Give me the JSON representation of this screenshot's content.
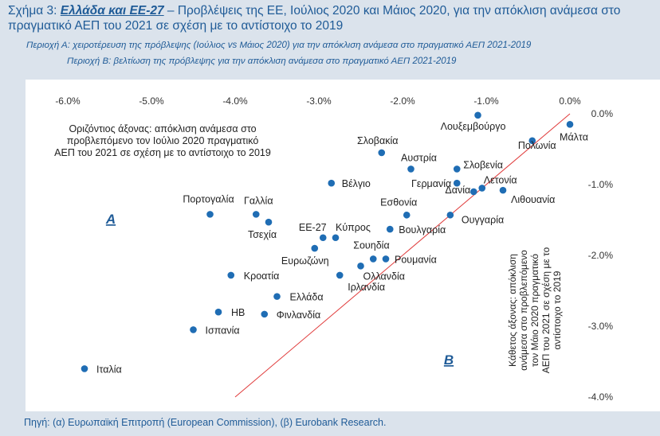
{
  "title": {
    "prefix": "Σχήμα 3: ",
    "highlight": "Ελλάδα και ΕΕ-27",
    "rest": " – Προβλέψεις της ΕΕ, Ιούλιος 2020 και Μάιος 2020, για την απόκλιση ανάμεσα στο πραγματικό ΑΕΠ του 2021 σε σχέση με το αντίστοιχο το 2019"
  },
  "subtitle_a": "Περιοχή Α: χειροτέρευση της πρόβλεψης (Ιούλιος vs Μάιος 2020) για την απόκλιση ανάμεσα στο πραγματικό ΑΕΠ 2021-2019",
  "subtitle_b": "Περιοχή Β: βελτίωση της πρόβλεψης για την απόκλιση ανάμεσα στο πραγματικό ΑΕΠ 2021-2019",
  "source": "Πηγή: (α) Ευρωπαϊκή Επιτροπή (European Commission), (β) Eurobank Research.",
  "colors": {
    "accent": "#1f5b97",
    "marker": "#1f6db4",
    "diagonal": "#e03a3a"
  },
  "chart_data": {
    "type": "scatter",
    "xlabel": "Οριζόντιος άξονας: απόκλιση ανάμεσα στο προβλεπόμενο τον Ιούλιο 2020 πραγματικό ΑΕΠ του 2021 σε σχέση με το αντίστοιχο το 2019",
    "xlabel_lines": [
      "Οριζόντιος άξονας: απόκλιση ανάμεσα στο",
      "προβλεπόμενο τον Ιούλιο 2020 πραγματικό",
      "ΑΕΠ του 2021 σε σχέση με το αντίστοιχο το 2019"
    ],
    "ylabel": "Κάθετος άξονας: απόκλιση ανάμεσα στο προβλεπόμενο τον Μάιο 2020 πραγματικό ΑΕΠ του 2021 σε σχέση με το αντίστοιχο το 2019",
    "ylabel_lines": [
      "Κάθετος άξονας: απόκλιση",
      "ανάμεσα στο προβλεπόμενο",
      "τον Μάιο 2020 πραγματικό",
      "ΑΕΠ του 2021 σε σχέση με το",
      "αντίστοιχο το 2019"
    ],
    "xlim": [
      -6.3,
      0.0
    ],
    "ylim": [
      -4.0,
      0.0
    ],
    "x_ticks": [
      -6.0,
      -5.0,
      -4.0,
      -3.0,
      -2.0,
      -1.0,
      0.0
    ],
    "x_tick_labels": [
      "-6.0%",
      "-5.0%",
      "-4.0%",
      "-3.0%",
      "-2.0%",
      "-1.0%",
      "0.0%"
    ],
    "y_ticks": [
      0.0,
      -1.0,
      -2.0,
      -3.0,
      -4.0
    ],
    "y_tick_labels": [
      "0.0%",
      "-1.0%",
      "-2.0%",
      "-3.0%",
      "-4.0%"
    ],
    "x_axis_position": "top",
    "y_axis_position": "right",
    "grid": false,
    "diagonal": "y = x",
    "region_labels": [
      {
        "text": "A",
        "x": -5.8,
        "y": -1.5
      },
      {
        "text": "B",
        "x": -1.6,
        "y": -3.5
      }
    ],
    "points": [
      {
        "label": "Λουξεμβούργο",
        "x": -1.1,
        "y": -0.02
      },
      {
        "label": "Μάλτα",
        "x": 0.0,
        "y": -0.15
      },
      {
        "label": "Πολωνία",
        "x": -0.45,
        "y": -0.38
      },
      {
        "label": "Σλοβακία",
        "x": -2.25,
        "y": -0.55
      },
      {
        "label": "Αυστρία",
        "x": -1.9,
        "y": -0.78
      },
      {
        "label": "Σλοβενία",
        "x": -1.35,
        "y": -0.78
      },
      {
        "label": "Βέλγιο",
        "x": -2.85,
        "y": -0.98
      },
      {
        "label": "Γερμανία",
        "x": -1.35,
        "y": -0.98
      },
      {
        "label": "Λετονία",
        "x": -1.05,
        "y": -1.05
      },
      {
        "label": "Λιθουανία",
        "x": -0.8,
        "y": -1.08
      },
      {
        "label": "Δανία",
        "x": -1.15,
        "y": -1.1
      },
      {
        "label": "Πορτογαλία",
        "x": -4.3,
        "y": -1.42
      },
      {
        "label": "Γαλλία",
        "x": -3.75,
        "y": -1.42
      },
      {
        "label": "Εσθονία",
        "x": -1.95,
        "y": -1.43
      },
      {
        "label": "Ουγγαρία",
        "x": -1.43,
        "y": -1.43
      },
      {
        "label": "Τσεχία",
        "x": -3.6,
        "y": -1.53
      },
      {
        "label": "Βουλγαρία",
        "x": -2.15,
        "y": -1.63
      },
      {
        "label": "ΕΕ-27",
        "x": -2.95,
        "y": -1.75
      },
      {
        "label": "Κύπρος",
        "x": -2.8,
        "y": -1.75
      },
      {
        "label": "Ευρωζώνη",
        "x": -3.05,
        "y": -1.9
      },
      {
        "label": "Σουηδία",
        "x": -2.35,
        "y": -2.05
      },
      {
        "label": "Ρουμανία",
        "x": -2.2,
        "y": -2.05
      },
      {
        "label": "Ολλανδία",
        "x": -2.5,
        "y": -2.15
      },
      {
        "label": "Κροατία",
        "x": -4.05,
        "y": -2.28
      },
      {
        "label": "Ιρλανδία",
        "x": -2.75,
        "y": -2.28
      },
      {
        "label": "Ελλάδα",
        "x": -3.5,
        "y": -2.58
      },
      {
        "label": "ΗΒ",
        "x": -4.2,
        "y": -2.8
      },
      {
        "label": "Φινλανδία",
        "x": -3.65,
        "y": -2.83
      },
      {
        "label": "Ισπανία",
        "x": -4.5,
        "y": -3.05
      },
      {
        "label": "Ιταλία",
        "x": -5.8,
        "y": -3.6
      }
    ]
  }
}
